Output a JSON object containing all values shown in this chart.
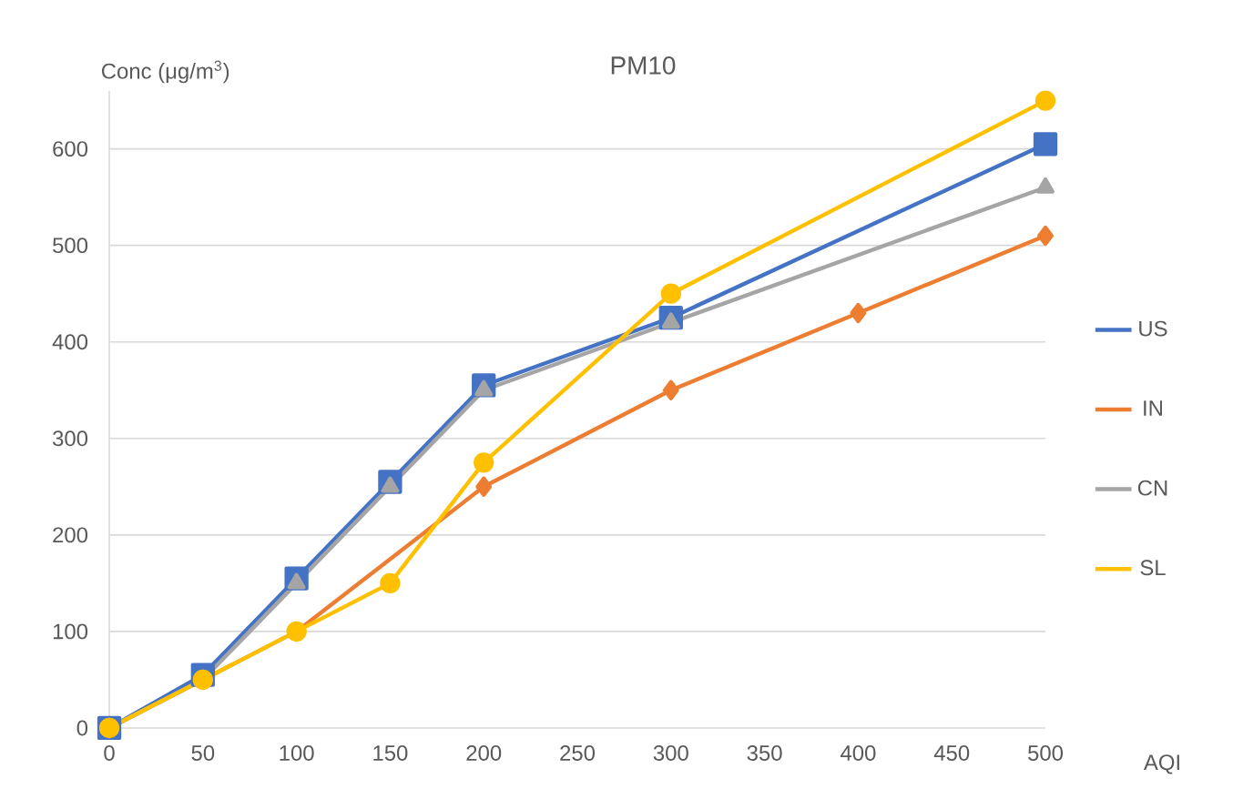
{
  "chart_data": {
    "type": "line",
    "title": "PM10",
    "xlabel": "AQI",
    "ylabel": "Conc (μg/m$^{3}$)",
    "xlim": [
      0,
      500
    ],
    "xticks": [
      0,
      50,
      100,
      150,
      200,
      250,
      300,
      350,
      400,
      450,
      500
    ],
    "ylim": [
      0,
      660
    ],
    "yticks": [
      0,
      100,
      200,
      300,
      400,
      500,
      600
    ],
    "grid": "y",
    "legend": "right",
    "line_style": "solid",
    "series": [
      {
        "name": "US",
        "color": "#4472c4",
        "marker": "square",
        "x": [
          0,
          50,
          100,
          150,
          200,
          300,
          500
        ],
        "values": [
          0,
          55,
          155,
          255,
          355,
          425,
          605
        ]
      },
      {
        "name": "IN",
        "color": "#ed7d31",
        "marker": "diamond",
        "x": [
          0,
          50,
          100,
          200,
          300,
          400,
          500
        ],
        "values": [
          0,
          50,
          100,
          250,
          350,
          430,
          510
        ]
      },
      {
        "name": "CN",
        "color": "#a5a5a5",
        "marker": "triangle",
        "x": [
          0,
          50,
          100,
          150,
          200,
          300,
          500
        ],
        "values": [
          0,
          50,
          150,
          250,
          350,
          420,
          560
        ]
      },
      {
        "name": "SL",
        "color": "#ffc000",
        "marker": "circle",
        "x": [
          0,
          50,
          100,
          150,
          200,
          300,
          500
        ],
        "values": [
          0,
          50,
          100,
          150,
          275,
          450,
          650
        ]
      }
    ]
  }
}
